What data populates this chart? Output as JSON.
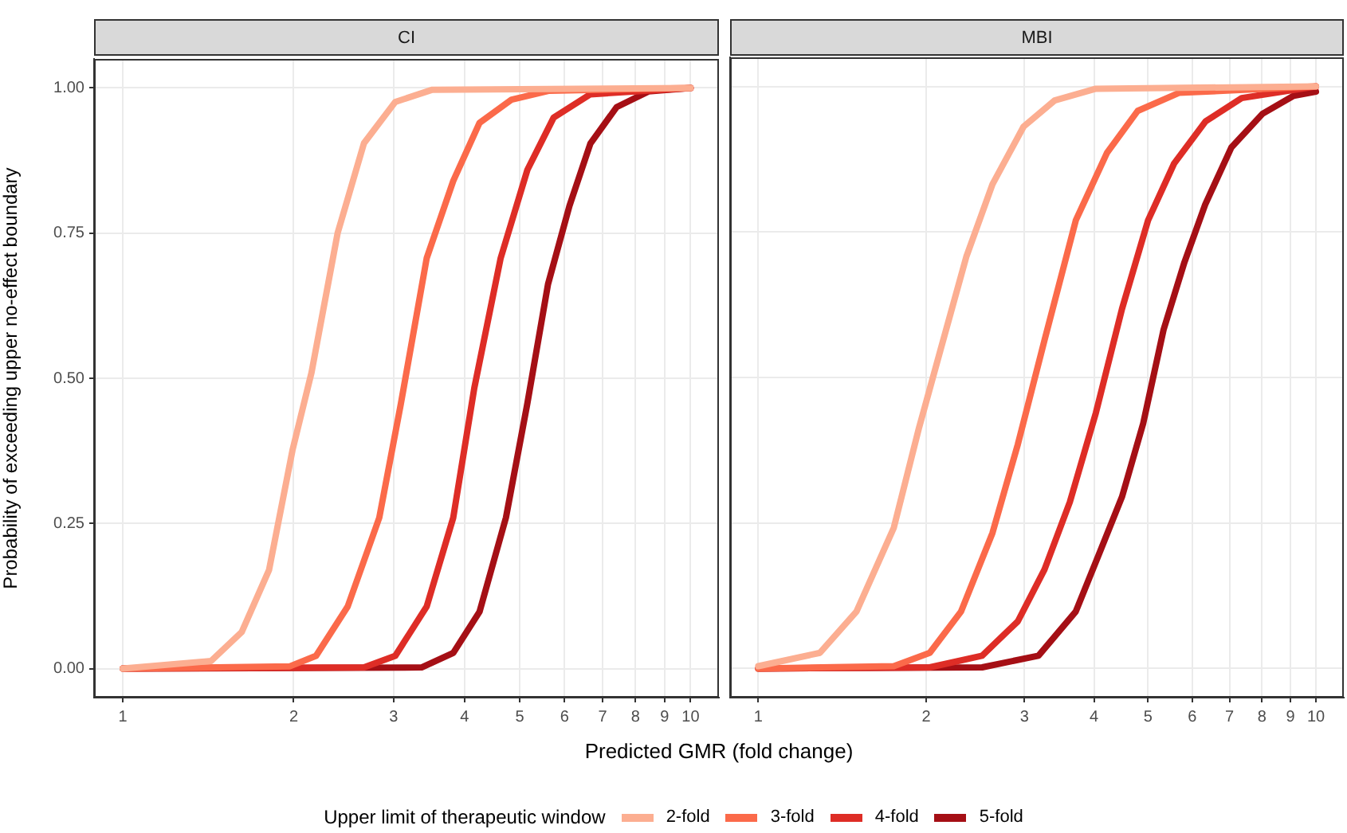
{
  "chart_data": [
    {
      "type": "line",
      "title": "CI",
      "xlabel": "Predicted GMR (fold change)",
      "ylabel": "Probability of exceeding upper no-effect boundary",
      "legend_title": "Upper limit of therapeutic window",
      "legend": "bottom",
      "log": "x",
      "grid": true,
      "line_style": "solid",
      "xlim": [
        0.89,
        11.22
      ],
      "xticks": [
        1,
        2,
        3,
        4,
        5,
        6,
        7,
        8,
        9,
        10
      ],
      "ylim": [
        -0.05,
        1.05
      ],
      "yticks": [
        {
          "value": 0,
          "label": "0.00"
        },
        {
          "value": 0.25,
          "label": "0.25"
        },
        {
          "value": 0.5,
          "label": "0.50"
        },
        {
          "value": 0.75,
          "label": "0.75"
        },
        {
          "value": 1,
          "label": "1.00"
        }
      ],
      "series": [
        {
          "name": "2-fold",
          "color": "#fcae91",
          "x": [
            1,
            1.43,
            1.62,
            1.81,
            1.99,
            2.15,
            2.39,
            2.66,
            3.02,
            3.51,
            10
          ],
          "values": [
            0,
            0.013,
            0.063,
            0.17,
            0.376,
            0.51,
            0.75,
            0.905,
            0.976,
            0.997,
            1
          ]
        },
        {
          "name": "3-fold",
          "color": "#fb6a4a",
          "x": [
            1,
            1.97,
            2.19,
            2.49,
            2.83,
            3.09,
            3.43,
            3.82,
            4.25,
            4.84,
            5.62,
            10
          ],
          "values": [
            0,
            0.004,
            0.022,
            0.107,
            0.26,
            0.457,
            0.707,
            0.84,
            0.94,
            0.98,
            0.995,
            1
          ]
        },
        {
          "name": "4-fold",
          "color": "#de2d26",
          "x": [
            1,
            2.66,
            3.02,
            3.43,
            3.82,
            4.16,
            4.63,
            5.16,
            5.74,
            6.66,
            10
          ],
          "values": [
            0,
            0.002,
            0.022,
            0.107,
            0.26,
            0.483,
            0.707,
            0.859,
            0.949,
            0.989,
            1
          ]
        },
        {
          "name": "5-fold",
          "color": "#a50f15",
          "x": [
            1,
            3.36,
            3.82,
            4.25,
            4.73,
            5.16,
            5.61,
            6.12,
            6.66,
            7.41,
            8.43,
            10
          ],
          "values": [
            0,
            0.002,
            0.027,
            0.098,
            0.26,
            0.457,
            0.662,
            0.797,
            0.904,
            0.967,
            0.994,
            1
          ]
        }
      ]
    },
    {
      "type": "line",
      "title": "MBI",
      "log": "x",
      "grid": true,
      "line_style": "solid",
      "tick_labels": "x",
      "xlim": [
        0.89,
        11.22
      ],
      "xticks": [
        1,
        2,
        3,
        4,
        5,
        6,
        7,
        8,
        9,
        10
      ],
      "ylim": [
        -0.05,
        1.05
      ],
      "yticks": [
        0,
        0.25,
        0.5,
        0.75,
        1
      ],
      "series": [
        {
          "color": "#fcae91",
          "x": [
            1,
            1.29,
            1.5,
            1.75,
            1.94,
            2.12,
            2.36,
            2.63,
            2.99,
            3.4,
            4.03,
            10
          ],
          "values": [
            0.004,
            0.027,
            0.098,
            0.242,
            0.412,
            0.546,
            0.707,
            0.832,
            0.931,
            0.976,
            0.996,
            1
          ]
        },
        {
          "color": "#fb6a4a",
          "x": [
            1,
            1.75,
            2.03,
            2.31,
            2.63,
            2.92,
            3.26,
            3.71,
            4.22,
            4.79,
            5.68,
            10
          ],
          "values": [
            0,
            0.004,
            0.027,
            0.098,
            0.233,
            0.385,
            0.564,
            0.77,
            0.886,
            0.958,
            0.989,
            1
          ]
        },
        {
          "color": "#de2d26",
          "x": [
            1,
            2.03,
            2.52,
            2.92,
            3.26,
            3.62,
            4.03,
            4.49,
            5,
            5.57,
            6.34,
            7.36,
            10
          ],
          "values": [
            0,
            0.002,
            0.022,
            0.081,
            0.17,
            0.286,
            0.439,
            0.618,
            0.77,
            0.868,
            0.94,
            0.98,
            1
          ]
        },
        {
          "color": "#a50f15",
          "x": [
            1,
            2.52,
            3.18,
            3.71,
            4.12,
            4.49,
            4.9,
            5.33,
            5.81,
            6.33,
            7.05,
            8.02,
            9.12,
            10
          ],
          "values": [
            0,
            0.002,
            0.022,
            0.098,
            0.206,
            0.295,
            0.421,
            0.582,
            0.698,
            0.797,
            0.895,
            0.953,
            0.984,
            0.991
          ]
        }
      ]
    }
  ]
}
